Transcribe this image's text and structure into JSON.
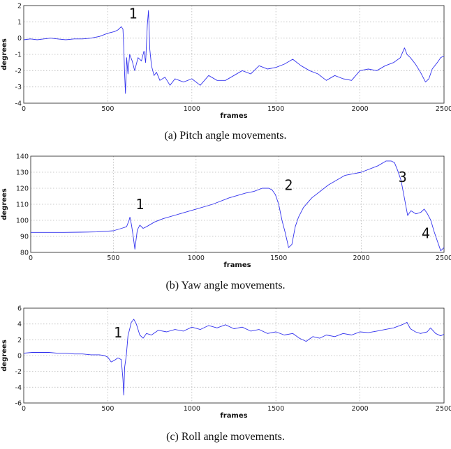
{
  "chart_data": [
    {
      "type": "line",
      "caption": "(a) Pitch angle movements.",
      "xlabel": "frames",
      "ylabel": "degrees",
      "xlim": [
        0,
        2500
      ],
      "ylim": [
        -4,
        2
      ],
      "xticks": [
        "0",
        "500",
        "1000",
        "1500",
        "2000",
        "2500"
      ],
      "yticks": [
        "-4",
        "-3",
        "-2",
        "-1",
        "0",
        "1",
        "2"
      ],
      "grid": true,
      "annotations": [
        {
          "text": "1",
          "x": 650,
          "y": 1.2
        }
      ],
      "series": [
        {
          "color": "#3232ee",
          "x": [
            0,
            40,
            80,
            120,
            160,
            200,
            250,
            300,
            350,
            400,
            450,
            500,
            540,
            560,
            580,
            590,
            595,
            600,
            605,
            612,
            620,
            630,
            645,
            660,
            680,
            700,
            715,
            725,
            735,
            742,
            750,
            760,
            775,
            790,
            810,
            840,
            870,
            900,
            950,
            1000,
            1050,
            1100,
            1150,
            1200,
            1250,
            1300,
            1350,
            1400,
            1450,
            1500,
            1550,
            1600,
            1650,
            1700,
            1750,
            1800,
            1850,
            1900,
            1950,
            2000,
            2050,
            2100,
            2150,
            2200,
            2240,
            2265,
            2280,
            2300,
            2330,
            2360,
            2390,
            2410,
            2430,
            2460,
            2480,
            2500
          ],
          "y": [
            -0.1,
            -0.05,
            -0.1,
            -0.05,
            0.0,
            -0.05,
            -0.1,
            -0.05,
            -0.05,
            0.0,
            0.1,
            0.3,
            0.4,
            0.5,
            0.7,
            0.55,
            -0.6,
            -2.2,
            -3.4,
            -1.2,
            -2.2,
            -1.0,
            -1.4,
            -2.0,
            -1.2,
            -1.4,
            -0.8,
            -1.5,
            0.8,
            1.7,
            -0.7,
            -1.7,
            -2.3,
            -2.1,
            -2.6,
            -2.4,
            -2.9,
            -2.5,
            -2.7,
            -2.5,
            -2.9,
            -2.3,
            -2.6,
            -2.6,
            -2.3,
            -2.0,
            -2.2,
            -1.7,
            -1.9,
            -1.8,
            -1.6,
            -1.3,
            -1.7,
            -2.0,
            -2.2,
            -2.6,
            -2.3,
            -2.5,
            -2.6,
            -2.0,
            -1.9,
            -2.0,
            -1.7,
            -1.5,
            -1.2,
            -0.6,
            -1.0,
            -1.2,
            -1.6,
            -2.1,
            -2.7,
            -2.5,
            -1.9,
            -1.5,
            -1.2,
            -1.1
          ]
        }
      ]
    },
    {
      "type": "line",
      "caption": "(b) Yaw angle movements.",
      "xlabel": "frames",
      "ylabel": "degrees",
      "xlim": [
        0,
        2500
      ],
      "ylim": [
        80,
        140
      ],
      "xticks": [
        "0",
        "500",
        "1000",
        "1500",
        "2000",
        "2500"
      ],
      "yticks": [
        "80",
        "90",
        "100",
        "110",
        "120",
        "130",
        "140"
      ],
      "grid": true,
      "annotations": [
        {
          "text": "1",
          "x": 660,
          "y": 107
        },
        {
          "text": "2",
          "x": 1560,
          "y": 119
        },
        {
          "text": "3",
          "x": 2250,
          "y": 124
        },
        {
          "text": "4",
          "x": 2390,
          "y": 89
        }
      ],
      "series": [
        {
          "color": "#3232ee",
          "x": [
            0,
            100,
            200,
            300,
            400,
            500,
            550,
            580,
            595,
            600,
            610,
            620,
            630,
            645,
            660,
            680,
            700,
            750,
            800,
            900,
            1000,
            1100,
            1200,
            1300,
            1350,
            1400,
            1440,
            1460,
            1480,
            1500,
            1520,
            1540,
            1560,
            1580,
            1600,
            1620,
            1650,
            1700,
            1750,
            1800,
            1900,
            2000,
            2100,
            2150,
            2180,
            2200,
            2220,
            2240,
            2260,
            2280,
            2300,
            2330,
            2360,
            2380,
            2400,
            2420,
            2440,
            2460,
            2480,
            2500
          ],
          "y": [
            92.5,
            92.5,
            92.5,
            92.6,
            92.8,
            93.5,
            95,
            96,
            100,
            102,
            97,
            90,
            82,
            94,
            97,
            95,
            96,
            99,
            101,
            104,
            107,
            110,
            114,
            117,
            118,
            120,
            120,
            119,
            116,
            110,
            100,
            92,
            83,
            85,
            96,
            102,
            108,
            114,
            118,
            122,
            128,
            130,
            134,
            137,
            137,
            136,
            131,
            125,
            114,
            103,
            106,
            104,
            105,
            107,
            104,
            100,
            93,
            87,
            81,
            83
          ]
        }
      ]
    },
    {
      "type": "line",
      "caption": "(c) Roll angle movements.",
      "xlabel": "frames",
      "ylabel": "degrees",
      "xlim": [
        0,
        2500
      ],
      "ylim": [
        -6,
        6
      ],
      "xticks": [
        "0",
        "500",
        "1000",
        "1500",
        "2000",
        "2500"
      ],
      "yticks": [
        "-6",
        "-4",
        "-2",
        "0",
        "2",
        "4",
        "6"
      ],
      "grid": true,
      "annotations": [
        {
          "text": "1",
          "x": 560,
          "y": 2.3
        }
      ],
      "series": [
        {
          "color": "#3232ee",
          "x": [
            0,
            50,
            100,
            150,
            200,
            250,
            300,
            350,
            400,
            450,
            480,
            500,
            520,
            540,
            560,
            580,
            590,
            595,
            600,
            610,
            620,
            640,
            655,
            670,
            690,
            710,
            730,
            760,
            800,
            850,
            900,
            950,
            1000,
            1050,
            1100,
            1150,
            1200,
            1250,
            1300,
            1350,
            1400,
            1450,
            1500,
            1550,
            1600,
            1640,
            1680,
            1720,
            1760,
            1800,
            1850,
            1900,
            1950,
            2000,
            2050,
            2100,
            2150,
            2200,
            2250,
            2280,
            2300,
            2330,
            2360,
            2400,
            2420,
            2450,
            2480,
            2500
          ],
          "y": [
            0.3,
            0.4,
            0.4,
            0.4,
            0.3,
            0.3,
            0.2,
            0.2,
            0.1,
            0.1,
            0.0,
            -0.2,
            -0.8,
            -0.6,
            -0.3,
            -0.5,
            -3.0,
            -5.0,
            -1.5,
            0.0,
            2.5,
            4.2,
            4.6,
            4.0,
            2.6,
            2.2,
            2.8,
            2.6,
            3.2,
            3.0,
            3.3,
            3.1,
            3.6,
            3.3,
            3.8,
            3.5,
            3.9,
            3.4,
            3.6,
            3.1,
            3.3,
            2.8,
            3.0,
            2.6,
            2.8,
            2.2,
            1.8,
            2.4,
            2.2,
            2.6,
            2.4,
            2.8,
            2.6,
            3.0,
            2.9,
            3.1,
            3.3,
            3.5,
            3.9,
            4.2,
            3.4,
            3.0,
            2.8,
            3.0,
            3.5,
            2.8,
            2.5,
            2.7
          ]
        }
      ]
    }
  ]
}
